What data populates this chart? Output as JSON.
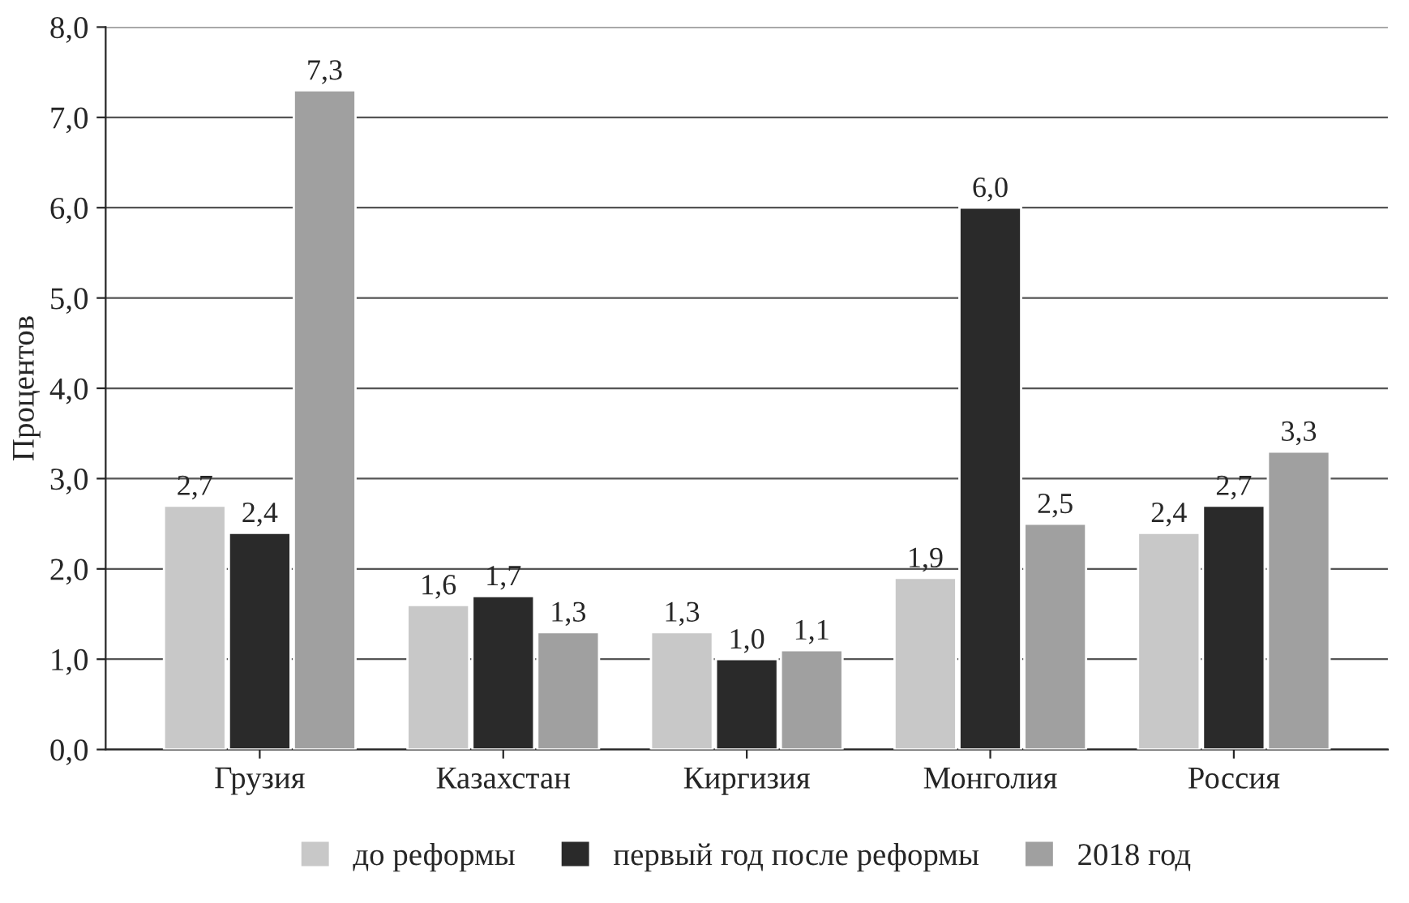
{
  "chart_data": {
    "type": "bar",
    "ylabel": "Процентов",
    "categories": [
      "Грузия",
      "Казахстан",
      "Киргизия",
      "Монголия",
      "Россия"
    ],
    "series": [
      {
        "name": "до реформы",
        "color": "#c8c8c8",
        "values": [
          2.7,
          1.6,
          1.3,
          1.9,
          2.4
        ],
        "value_labels": [
          "2,7",
          "1,6",
          "1,3",
          "1,9",
          "2,4"
        ]
      },
      {
        "name": "первый год после реформы",
        "color": "#2a2a2a",
        "values": [
          2.4,
          1.7,
          1.0,
          6.0,
          2.7
        ],
        "value_labels": [
          "2,4",
          "1,7",
          "1,0",
          "6,0",
          "2,7"
        ]
      },
      {
        "name": "2018 год",
        "color": "#a0a0a0",
        "values": [
          7.3,
          1.3,
          1.1,
          2.5,
          3.3
        ],
        "value_labels": [
          "7,3",
          "1,3",
          "1,1",
          "2,5",
          "3,3"
        ]
      }
    ],
    "ylim": [
      0,
      8
    ],
    "yticks": [
      {
        "value": 0,
        "label": "0,0"
      },
      {
        "value": 1,
        "label": "1,0"
      },
      {
        "value": 2,
        "label": "2,0"
      },
      {
        "value": 3,
        "label": "3,0"
      },
      {
        "value": 4,
        "label": "4,0"
      },
      {
        "value": 5,
        "label": "5,0"
      },
      {
        "value": 6,
        "label": "6,0"
      },
      {
        "value": 7,
        "label": "7,0"
      },
      {
        "value": 8,
        "label": "8,0"
      }
    ],
    "grid": "y",
    "legend": "bottom"
  }
}
